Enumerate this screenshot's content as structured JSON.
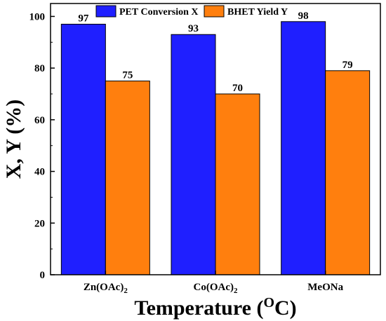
{
  "chart_data": {
    "type": "bar",
    "categories": [
      {
        "base": "Zn(OAc)",
        "sub": "2"
      },
      {
        "base": "Co(OAc)",
        "sub": "2"
      },
      {
        "base": "MeONa",
        "sub": ""
      }
    ],
    "series": [
      {
        "name": "PET Conversion X",
        "values": [
          97,
          93,
          98
        ],
        "color": "#1f1fff"
      },
      {
        "name": "BHET Yield Y",
        "values": [
          75,
          70,
          79
        ],
        "color": "#ff7f0e"
      }
    ],
    "data_labels": [
      [
        "97",
        "93",
        "98"
      ],
      [
        "75",
        "70",
        "79"
      ]
    ],
    "xlabel": {
      "main": "Temperature (",
      "sup": "O",
      "tail": "C)"
    },
    "ylabel": "X, Y (%)",
    "ylim": [
      0,
      105
    ],
    "yticks": [
      0,
      20,
      40,
      60,
      80,
      100
    ],
    "grid": false,
    "legend_position": "top-center"
  }
}
